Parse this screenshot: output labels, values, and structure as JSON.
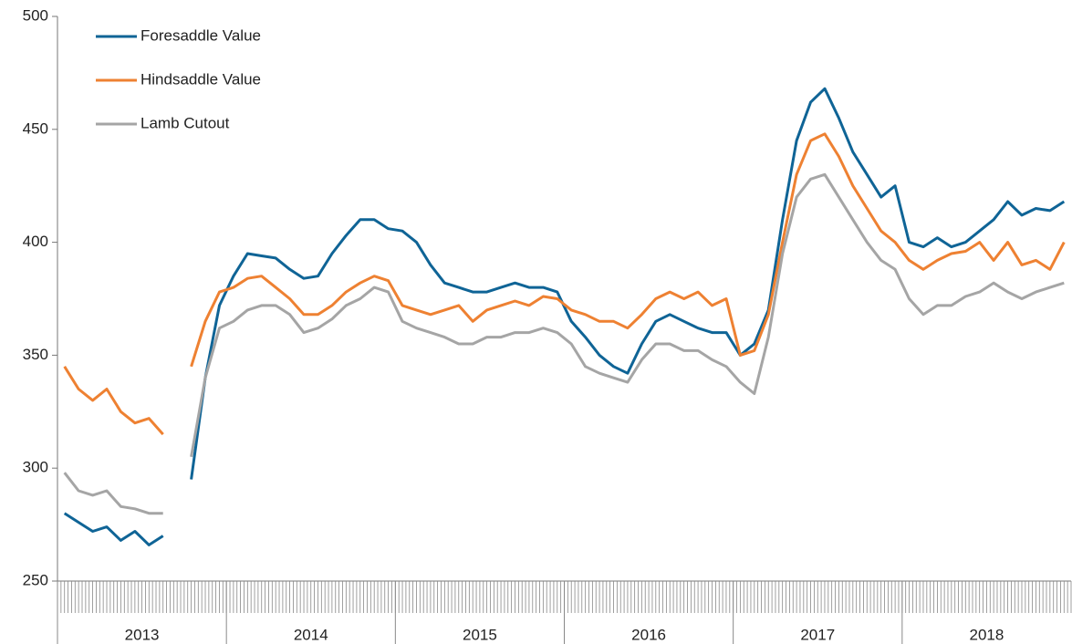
{
  "chart_data": {
    "type": "line",
    "categories": [
      null,
      null,
      null,
      null,
      null,
      null,
      null,
      null,
      null,
      null,
      null,
      null,
      null,
      null,
      null,
      null,
      null,
      null,
      null,
      null,
      null,
      null,
      null,
      null,
      null,
      null,
      null,
      null,
      null,
      null,
      null,
      null,
      null,
      null,
      null,
      null,
      null,
      null,
      null,
      null,
      null,
      null,
      null,
      null,
      null,
      null,
      null,
      null,
      null,
      null,
      null,
      null,
      null,
      null,
      null,
      null,
      null,
      null,
      null,
      null,
      null,
      null,
      null,
      null,
      null,
      null,
      null,
      null,
      null,
      null,
      null,
      null
    ],
    "groups": [
      {
        "label": "2013",
        "size": 12
      },
      {
        "label": "2014",
        "size": 12
      },
      {
        "label": "2015",
        "size": 12
      },
      {
        "label": "2016",
        "size": 12
      },
      {
        "label": "2017",
        "size": 12
      },
      {
        "label": "2018",
        "size": 12
      }
    ],
    "series": [
      {
        "name": "Foresaddle Value",
        "color": "#0f6496",
        "values": [
          280,
          276,
          272,
          274,
          268,
          272,
          266,
          270,
          null,
          295,
          340,
          372,
          385,
          395,
          394,
          393,
          388,
          384,
          385,
          395,
          403,
          410,
          410,
          406,
          405,
          400,
          390,
          382,
          380,
          378,
          378,
          380,
          382,
          380,
          380,
          378,
          365,
          358,
          350,
          345,
          342,
          355,
          365,
          368,
          365,
          362,
          360,
          360,
          350,
          355,
          370,
          410,
          445,
          462,
          468,
          455,
          440,
          430,
          420,
          425,
          400,
          398,
          402,
          398,
          400,
          405,
          410,
          418,
          412,
          415,
          414,
          418
        ]
      },
      {
        "name": "Hindsaddle Value",
        "color": "#ee8132",
        "values": [
          345,
          335,
          330,
          335,
          325,
          320,
          322,
          315,
          null,
          345,
          365,
          378,
          380,
          384,
          385,
          380,
          375,
          368,
          368,
          372,
          378,
          382,
          385,
          383,
          372,
          370,
          368,
          370,
          372,
          365,
          370,
          372,
          374,
          372,
          376,
          375,
          370,
          368,
          365,
          365,
          362,
          368,
          375,
          378,
          375,
          378,
          372,
          375,
          350,
          352,
          368,
          400,
          430,
          445,
          448,
          438,
          425,
          415,
          405,
          400,
          392,
          388,
          392,
          395,
          396,
          400,
          392,
          400,
          390,
          392,
          388,
          400
        ]
      },
      {
        "name": "Lamb Cutout",
        "color": "#a5a5a5",
        "values": [
          298,
          290,
          288,
          290,
          283,
          282,
          280,
          280,
          null,
          305,
          340,
          362,
          365,
          370,
          372,
          372,
          368,
          360,
          362,
          366,
          372,
          375,
          380,
          378,
          365,
          362,
          360,
          358,
          355,
          355,
          358,
          358,
          360,
          360,
          362,
          360,
          355,
          345,
          342,
          340,
          338,
          348,
          355,
          355,
          352,
          352,
          348,
          345,
          338,
          333,
          358,
          395,
          420,
          428,
          430,
          420,
          410,
          400,
          392,
          388,
          375,
          368,
          372,
          372,
          376,
          378,
          382,
          378,
          375,
          378,
          380,
          382
        ]
      }
    ],
    "ylim": [
      250,
      500
    ],
    "yticks": [
      250,
      300,
      350,
      400,
      450,
      500
    ],
    "grid": false,
    "legend": "top-left"
  }
}
